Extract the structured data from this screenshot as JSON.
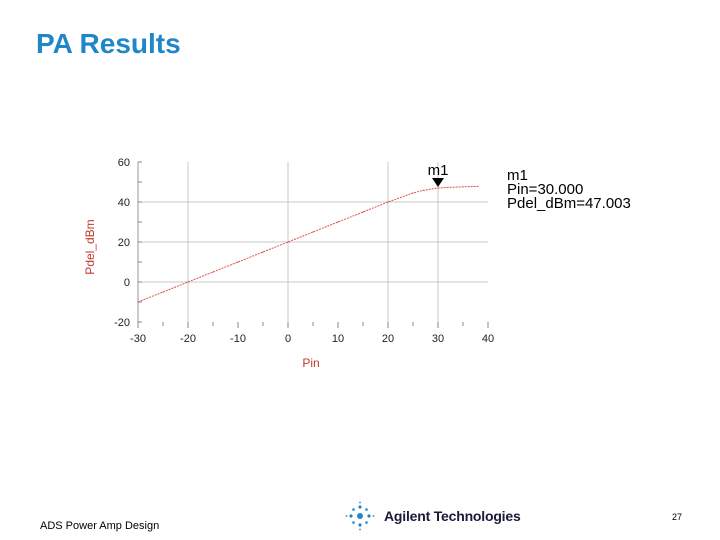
{
  "slide": {
    "title": "PA Results",
    "footer_left": "ADS Power Amp Design",
    "brand": "Agilent Technologies",
    "page_number": "27"
  },
  "colors": {
    "title": "#1f86c8",
    "series": "#d9534f",
    "axis_label": "#c0392b",
    "grid": "#c8c8c8"
  },
  "chart_data": {
    "type": "line",
    "xlabel": "Pin",
    "ylabel": "Pdel_dBm",
    "xlim": [
      -30,
      40
    ],
    "ylim": [
      -20,
      60
    ],
    "x_ticks": [
      -30,
      -20,
      -10,
      0,
      10,
      20,
      30,
      40
    ],
    "y_ticks": [
      60,
      40,
      20,
      0,
      -20
    ],
    "grid": true,
    "series": [
      {
        "x": [
          -30,
          -25,
          -20,
          -15,
          -10,
          -5,
          0,
          5,
          10,
          15,
          20,
          25,
          27,
          30,
          32,
          35,
          38
        ],
        "y": [
          -10,
          -5,
          0,
          5,
          10,
          15,
          20,
          25,
          30,
          35,
          40,
          44.5,
          45.8,
          47.0,
          47.3,
          47.6,
          47.8
        ]
      }
    ],
    "marker": {
      "name": "m1",
      "x": 30,
      "y": 47.003,
      "readout": [
        "m1",
        "Pin=30.000",
        "Pdel_dBm=47.003"
      ]
    }
  }
}
